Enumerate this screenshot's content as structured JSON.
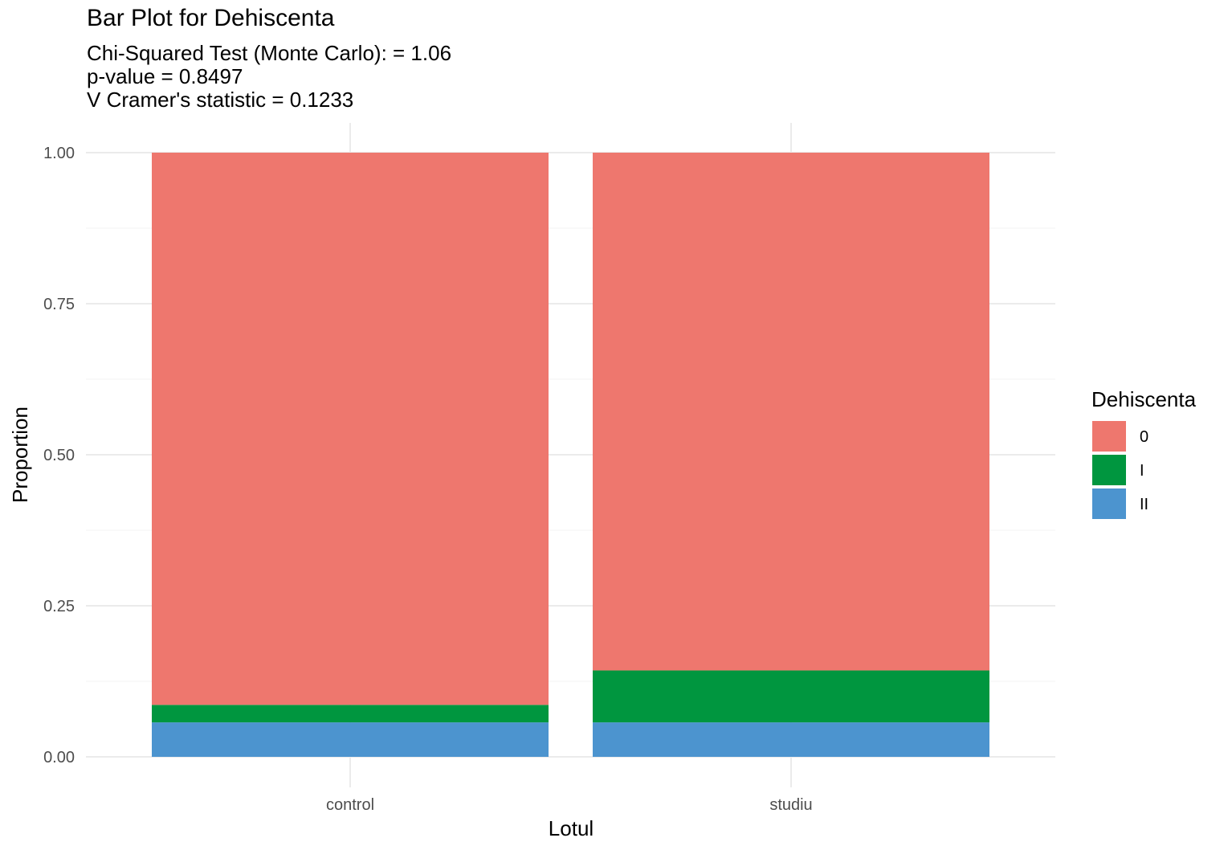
{
  "chart_data": {
    "type": "bar",
    "stacked": true,
    "title": "Bar Plot for Dehiscenta",
    "subtitle_lines": [
      "Chi-Squared Test (Monte Carlo): = 1.06",
      "p-value = 0.8497",
      "V Cramer's statistic = 0.1233"
    ],
    "xlabel": "Lotul",
    "ylabel": "Proportion",
    "categories": [
      "control",
      "studiu"
    ],
    "ylim": [
      0,
      1
    ],
    "yticks": [
      "0.00",
      "0.25",
      "0.50",
      "0.75",
      "1.00"
    ],
    "ytick_values": [
      0,
      0.25,
      0.5,
      0.75,
      1.0
    ],
    "grid": true,
    "legend": {
      "title": "Dehiscenta",
      "position": "right"
    },
    "series": [
      {
        "name": "II",
        "color": "#4C94CF",
        "values": [
          0.057,
          0.057
        ]
      },
      {
        "name": "I",
        "color": "#00963F",
        "values": [
          0.029,
          0.086
        ]
      },
      {
        "name": "0",
        "color": "#EE776E",
        "values": [
          0.914,
          0.857
        ]
      }
    ]
  }
}
